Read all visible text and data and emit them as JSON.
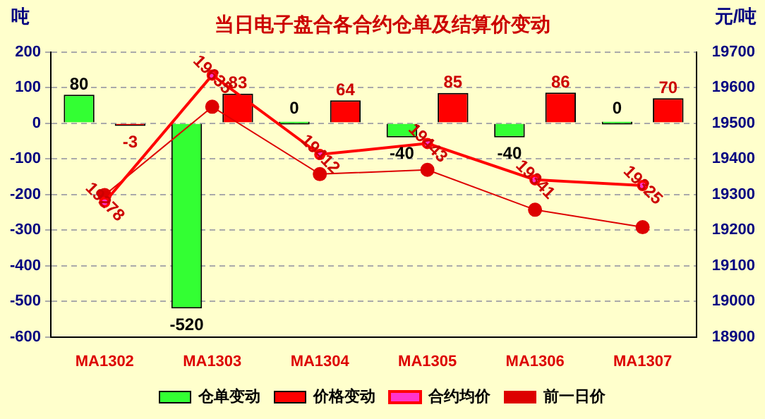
{
  "chart_data": {
    "type": "bar",
    "title": "当日电子盘合各合约仓单及结算价变动",
    "ylabel": "吨",
    "y2label": "元/吨",
    "categories": [
      "MA1302",
      "MA1303",
      "MA1304",
      "MA1305",
      "MA1306",
      "MA1307"
    ],
    "series": [
      {
        "name": "仓单变动",
        "color": "#33ff33",
        "values": [
          80,
          -520,
          0,
          -40,
          -40,
          0
        ],
        "value_labels": [
          "80",
          "-520",
          "0",
          "-40",
          "-40",
          "0"
        ]
      },
      {
        "name": "价格变动",
        "color": "#ff0000",
        "values": [
          -3,
          83,
          64,
          85,
          86,
          70
        ],
        "value_labels": [
          "-3",
          "83",
          "64",
          "85",
          "86",
          "70"
        ]
      },
      {
        "name": "合约均价",
        "type": "line",
        "axis": "y2",
        "color": "#ff0000",
        "marker": "circle",
        "values": [
          19278,
          19635,
          19412,
          19443,
          19341,
          19325
        ],
        "value_labels": [
          "19278",
          "19635",
          "19412",
          "19443",
          "19341",
          "19325"
        ]
      },
      {
        "name": "前一日价",
        "type": "line",
        "axis": "y2",
        "color": "#dd0000",
        "marker": "circle",
        "values": [
          19298,
          19546,
          19357,
          19369,
          19257,
          19208
        ]
      }
    ],
    "ylim": [
      -600,
      200
    ],
    "yticks": [
      -600,
      -500,
      -400,
      -300,
      -200,
      -100,
      0,
      100,
      200
    ],
    "y2lim": [
      18900,
      19700
    ],
    "y2ticks": [
      18900,
      19000,
      19100,
      19200,
      19300,
      19400,
      19500,
      19600,
      19700
    ],
    "grid": "y",
    "legend": "bottom"
  }
}
